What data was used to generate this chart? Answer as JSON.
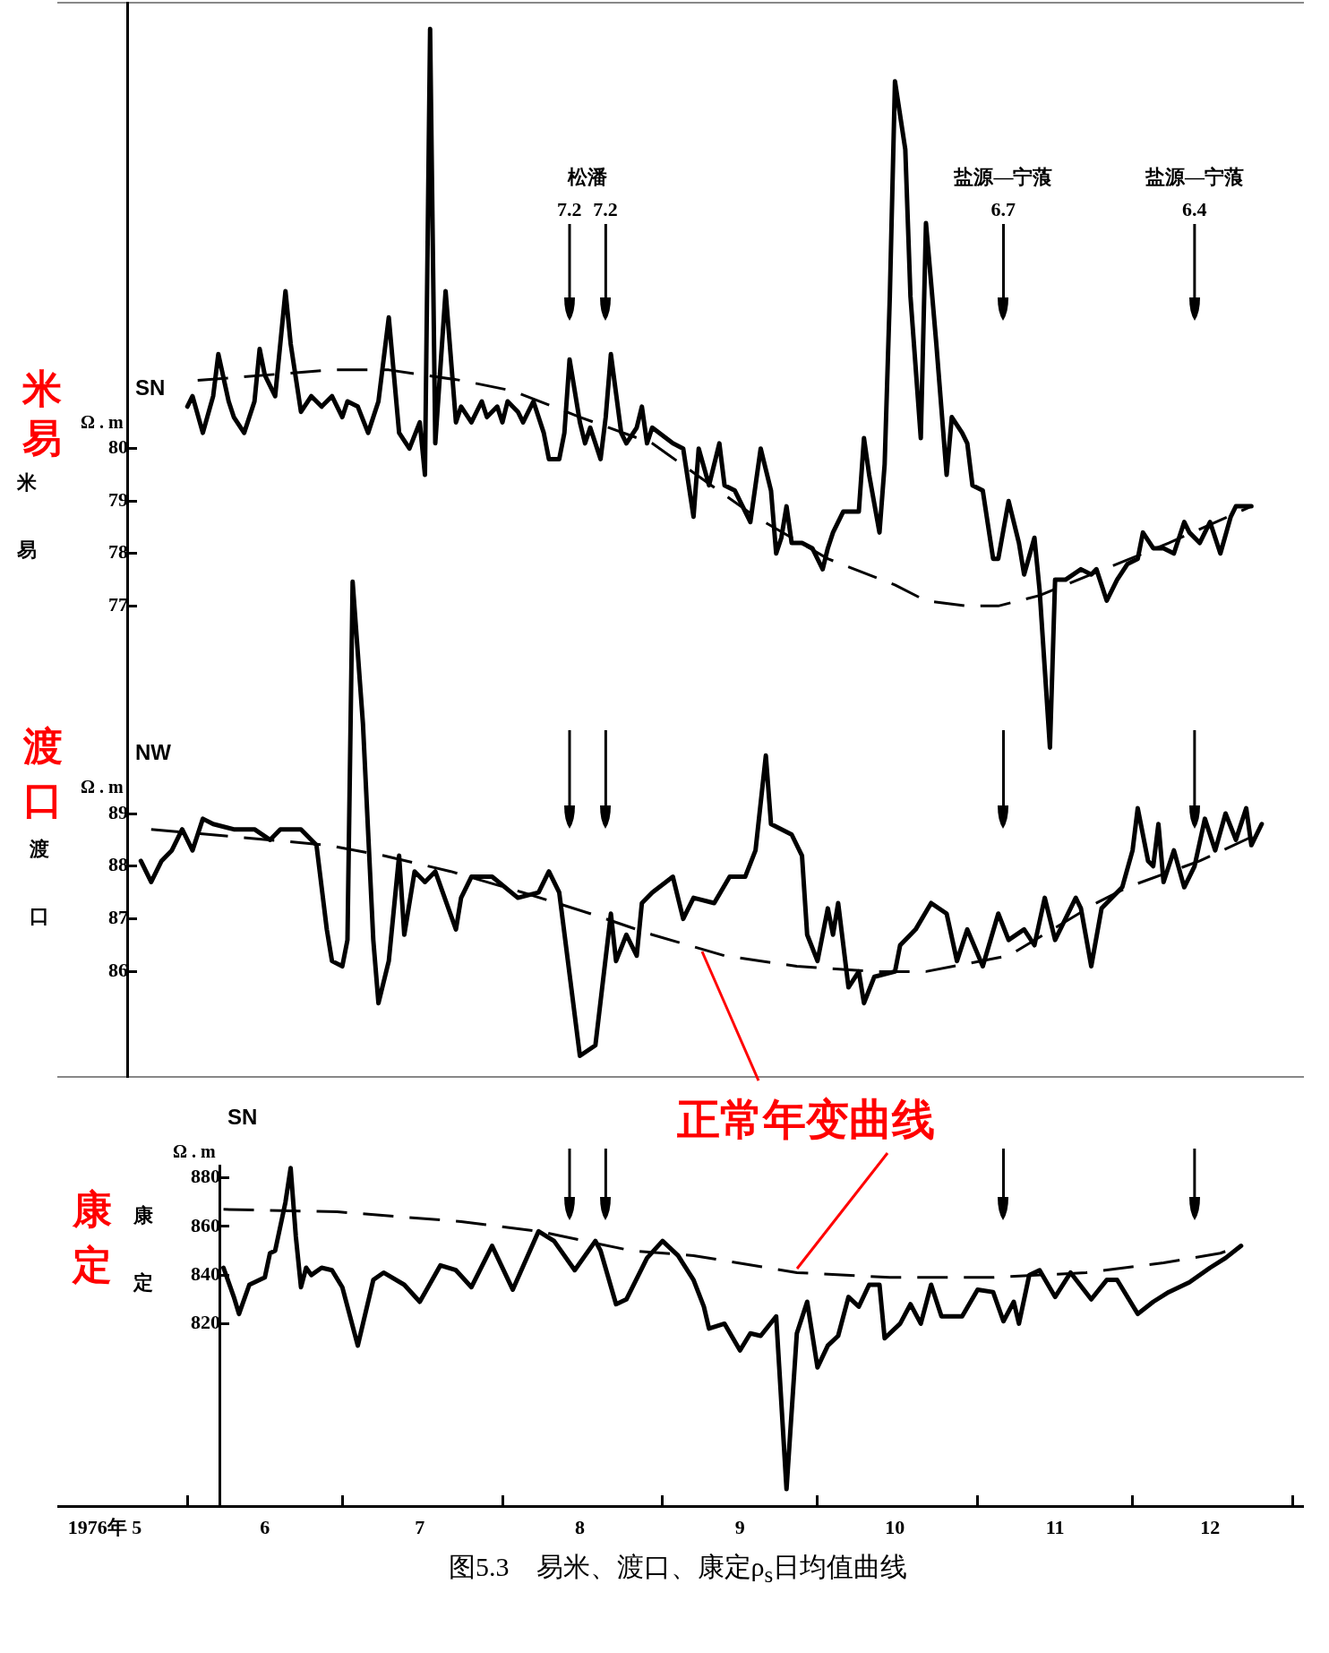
{
  "chart_data": [
    {
      "type": "line",
      "title": "SN",
      "ylabel": "Ω . m",
      "xlim": [
        "1976-05-07",
        "1977-01-03"
      ],
      "ylim": [
        74,
        88.5
      ],
      "yticks": [
        77,
        78,
        79,
        80
      ],
      "tick_labels": "y",
      "series": [
        {
          "color": "#000000",
          "x": [
            "1976-06-01",
            "1976-06-02",
            "1976-06-04",
            "1976-06-06",
            "1976-06-07",
            "1976-06-09",
            "1976-06-10",
            "1976-06-12",
            "1976-06-14",
            "1976-06-15",
            "1976-06-16",
            "1976-06-18",
            "1976-06-20",
            "1976-06-21",
            "1976-06-23",
            "1976-06-25",
            "1976-06-27",
            "1976-06-29",
            "1976-07-01",
            "1976-07-02",
            "1976-07-04",
            "1976-07-06",
            "1976-07-08",
            "1976-07-10",
            "1976-07-11",
            "1976-07-12",
            "1976-07-14",
            "1976-07-16",
            "1976-07-17",
            "1976-07-18",
            "1976-07-19",
            "1976-07-21",
            "1976-07-23",
            "1976-07-24",
            "1976-07-26",
            "1976-07-28",
            "1976-07-29",
            "1976-07-31",
            "1976-08-01",
            "1976-08-02",
            "1976-08-04",
            "1976-08-05",
            "1976-08-07",
            "1976-08-09",
            "1976-08-10",
            "1976-08-12",
            "1976-08-13",
            "1976-08-14",
            "1976-08-16",
            "1976-08-17",
            "1976-08-18",
            "1976-08-20",
            "1976-08-21",
            "1976-08-22",
            "1976-08-24",
            "1976-08-25",
            "1976-08-27",
            "1976-08-28",
            "1976-08-29",
            "1976-08-30",
            "1976-09-03",
            "1976-09-05",
            "1976-09-07",
            "1976-09-08",
            "1976-09-10",
            "1976-09-12",
            "1976-09-13",
            "1976-09-15",
            "1976-09-18",
            "1976-09-20",
            "1976-09-22",
            "1976-09-23",
            "1976-09-24",
            "1976-09-25",
            "1976-09-26",
            "1976-09-28",
            "1976-09-30",
            "1976-10-02",
            "1976-10-03",
            "1976-10-04",
            "1976-10-06",
            "1976-10-09",
            "1976-10-10",
            "1976-10-11",
            "1976-10-13",
            "1976-10-14",
            "1976-10-15",
            "1976-10-16",
            "1976-10-18",
            "1976-10-19",
            "1976-10-21",
            "1976-10-22",
            "1976-10-24",
            "1976-10-26",
            "1976-10-27",
            "1976-10-29",
            "1976-10-30",
            "1976-10-31",
            "1976-11-02",
            "1976-11-04",
            "1976-11-05",
            "1976-11-07",
            "1976-11-09",
            "1976-11-10",
            "1976-11-12",
            "1976-11-13",
            "1976-11-15",
            "1976-11-16",
            "1976-11-18",
            "1976-11-21",
            "1976-11-23",
            "1976-11-24",
            "1976-11-26",
            "1976-11-28",
            "1976-11-30",
            "1976-12-02",
            "1976-12-03",
            "1976-12-05",
            "1976-12-07",
            "1976-12-09",
            "1976-12-11",
            "1976-12-12",
            "1976-12-14",
            "1976-12-16",
            "1976-12-18",
            "1976-12-20",
            "1976-12-21",
            "1976-12-24"
          ],
          "values": [
            80.8,
            81.0,
            80.3,
            81.0,
            81.8,
            80.9,
            80.6,
            80.3,
            80.9,
            81.9,
            81.4,
            81.0,
            83.0,
            82.0,
            80.7,
            81.0,
            80.8,
            81.0,
            80.6,
            80.9,
            80.8,
            80.3,
            80.9,
            82.5,
            81.4,
            80.3,
            80.0,
            80.5,
            79.5,
            88.0,
            80.1,
            83.0,
            80.5,
            80.8,
            80.5,
            80.9,
            80.6,
            80.8,
            80.5,
            80.9,
            80.7,
            80.5,
            80.9,
            80.3,
            79.8,
            79.8,
            80.3,
            81.7,
            80.5,
            80.1,
            80.4,
            79.8,
            80.6,
            81.8,
            80.3,
            80.1,
            80.4,
            80.8,
            80.1,
            80.4,
            80.1,
            80.0,
            78.7,
            80.0,
            79.3,
            80.1,
            79.3,
            79.2,
            78.6,
            80.0,
            79.2,
            78.0,
            78.3,
            78.9,
            78.2,
            78.2,
            78.1,
            77.7,
            78.1,
            78.4,
            78.8,
            78.8,
            80.2,
            79.5,
            78.4,
            79.7,
            82.9,
            87.0,
            85.7,
            82.9,
            80.2,
            84.3,
            82.0,
            79.5,
            80.6,
            80.3,
            80.1,
            79.3,
            79.2,
            77.9,
            77.9,
            79.0,
            78.2,
            77.6,
            78.3,
            77.3,
            74.3,
            77.5,
            77.5,
            77.7,
            77.6,
            77.7,
            77.1,
            77.5,
            77.8,
            77.9,
            78.4,
            78.1,
            78.1,
            78.0,
            78.6,
            78.4,
            78.2,
            78.6,
            78.0,
            78.7,
            78.9,
            78.9
          ]
        },
        {
          "color": "#000000",
          "line_style": "dashed",
          "x": [
            "1976-06-03",
            "1976-06-29",
            "1976-07-10",
            "1976-07-24",
            "1976-08-03",
            "1976-08-16",
            "1976-08-30",
            "1976-09-19",
            "1976-10-03",
            "1976-10-16",
            "1976-10-22",
            "1976-10-30",
            "1976-11-05",
            "1976-11-13",
            "1976-11-23",
            "1976-12-08",
            "1976-12-24"
          ],
          "values": [
            81.3,
            81.5,
            81.5,
            81.3,
            81.1,
            80.6,
            80.1,
            78.7,
            77.9,
            77.4,
            77.1,
            77.0,
            77.0,
            77.2,
            77.6,
            78.2,
            78.9
          ]
        }
      ],
      "ref_lines": [
        {
          "axis": "x",
          "value": "1976-08-14",
          "label": "7.2"
        },
        {
          "axis": "x",
          "value": "1976-08-21",
          "label": "7.2"
        },
        {
          "axis": "x",
          "value": "1976-11-06",
          "label": "6.7"
        },
        {
          "axis": "x",
          "value": "1976-12-13",
          "label": "6.4"
        }
      ],
      "annotations": [
        "米易",
        "米易",
        "松潘",
        "盐源—宁蒗",
        "盐源—宁蒗"
      ]
    },
    {
      "type": "line",
      "title": "NW",
      "ylabel": "Ω . m",
      "xlim": [
        "1976-05-07",
        "1977-01-03"
      ],
      "ylim": [
        84,
        94
      ],
      "yticks": [
        86,
        87,
        88,
        89
      ],
      "tick_labels": "y",
      "series": [
        {
          "color": "#000000",
          "x": [
            "1976-05-23",
            "1976-05-25",
            "1976-05-27",
            "1976-05-29",
            "1976-05-31",
            "1976-06-02",
            "1976-06-04",
            "1976-06-06",
            "1976-06-10",
            "1976-06-14",
            "1976-06-17",
            "1976-06-19",
            "1976-06-23",
            "1976-06-26",
            "1976-06-28",
            "1976-06-29",
            "1976-07-01",
            "1976-07-02",
            "1976-07-03",
            "1976-07-05",
            "1976-07-07",
            "1976-07-08",
            "1976-07-10",
            "1976-07-12",
            "1976-07-13",
            "1976-07-15",
            "1976-07-17",
            "1976-07-19",
            "1976-07-23",
            "1976-07-24",
            "1976-07-26",
            "1976-07-30",
            "1976-08-04",
            "1976-08-08",
            "1976-08-10",
            "1976-08-12",
            "1976-08-16",
            "1976-08-19",
            "1976-08-22",
            "1976-08-23",
            "1976-08-25",
            "1976-08-27",
            "1976-08-28",
            "1976-08-30",
            "1976-09-03",
            "1976-09-05",
            "1976-09-07",
            "1976-09-11",
            "1976-09-14",
            "1976-09-17",
            "1976-09-19",
            "1976-09-21",
            "1976-09-22",
            "1976-09-26",
            "1976-09-28",
            "1976-09-29",
            "1976-10-01",
            "1976-10-03",
            "1976-10-04",
            "1976-10-05",
            "1976-10-07",
            "1976-10-09",
            "1976-10-10",
            "1976-10-12",
            "1976-10-16",
            "1976-10-17",
            "1976-10-20",
            "1976-10-23",
            "1976-10-26",
            "1976-10-28",
            "1976-10-30",
            "1976-11-02",
            "1976-11-05",
            "1976-11-07",
            "1976-11-10",
            "1976-11-12",
            "1976-11-14",
            "1976-11-16",
            "1976-11-20",
            "1976-11-21",
            "1976-11-23",
            "1976-11-25",
            "1976-11-29",
            "1976-12-01",
            "1976-12-02",
            "1976-12-04",
            "1976-12-05",
            "1976-12-06",
            "1976-12-07",
            "1976-12-09",
            "1976-12-11",
            "1976-12-13",
            "1976-12-15",
            "1976-12-17",
            "1976-12-19",
            "1976-12-21",
            "1976-12-23",
            "1976-12-24",
            "1976-12-26"
          ],
          "values": [
            88.1,
            87.7,
            88.1,
            88.3,
            88.7,
            88.3,
            88.9,
            88.8,
            88.7,
            88.7,
            88.5,
            88.7,
            88.7,
            88.4,
            86.8,
            86.2,
            86.1,
            86.6,
            93.4,
            90.7,
            86.6,
            85.4,
            86.2,
            88.2,
            86.7,
            87.9,
            87.7,
            87.9,
            86.8,
            87.4,
            87.8,
            87.8,
            87.4,
            87.5,
            87.9,
            87.5,
            84.4,
            84.6,
            87.1,
            86.2,
            86.7,
            86.3,
            87.3,
            87.5,
            87.8,
            87.0,
            87.4,
            87.3,
            87.8,
            87.8,
            88.3,
            90.1,
            88.8,
            88.6,
            88.2,
            86.7,
            86.2,
            87.2,
            86.7,
            87.3,
            85.7,
            86.0,
            85.4,
            85.9,
            86.0,
            86.5,
            86.8,
            87.3,
            87.1,
            86.2,
            86.8,
            86.1,
            87.1,
            86.6,
            86.8,
            86.5,
            87.4,
            86.6,
            87.4,
            87.2,
            86.1,
            87.2,
            87.6,
            88.3,
            89.1,
            88.1,
            88.0,
            88.8,
            87.7,
            88.3,
            87.6,
            88.0,
            88.9,
            88.3,
            89.0,
            88.5,
            89.1,
            88.4,
            88.8
          ]
        },
        {
          "color": "#000000",
          "line_style": "dashed",
          "x": [
            "1976-05-25",
            "1976-06-28",
            "1976-07-09",
            "1976-07-22",
            "1976-08-05",
            "1976-08-18",
            "1976-08-30",
            "1976-09-13",
            "1976-09-27",
            "1976-10-12",
            "1976-10-22",
            "1976-11-07",
            "1976-11-24",
            "1976-11-30",
            "1976-12-14",
            "1976-12-25"
          ],
          "values": [
            88.7,
            88.4,
            88.2,
            87.9,
            87.5,
            87.1,
            86.7,
            86.3,
            86.1,
            86.0,
            86.0,
            86.3,
            87.3,
            87.6,
            88.1,
            88.6
          ]
        }
      ],
      "ref_lines": [
        {
          "axis": "x",
          "value": "1976-08-14"
        },
        {
          "axis": "x",
          "value": "1976-08-21"
        },
        {
          "axis": "x",
          "value": "1976-11-06"
        },
        {
          "axis": "x",
          "value": "1976-12-13"
        }
      ],
      "annotations": [
        "渡口",
        "渡口"
      ]
    },
    {
      "type": "line",
      "title": "SN",
      "ylabel": "Ω . m",
      "xlim": [
        "1976-05-07",
        "1977-01-03"
      ],
      "ylim": [
        745,
        885
      ],
      "yticks": [
        820,
        840,
        860,
        880
      ],
      "xticks": [
        {
          "value": "1976-05-16",
          "label": "1976年 5"
        },
        {
          "value": "1976-06-01",
          "label": null
        },
        {
          "value": "1976-06-16",
          "label": "6"
        },
        {
          "value": "1976-07-01",
          "label": null
        },
        {
          "value": "1976-07-16",
          "label": "7"
        },
        {
          "value": "1976-08-01",
          "label": null
        },
        {
          "value": "1976-08-16",
          "label": "8"
        },
        {
          "value": "1976-09-01",
          "label": null
        },
        {
          "value": "1976-09-16",
          "label": "9"
        },
        {
          "value": "1976-10-01",
          "label": null
        },
        {
          "value": "1976-10-16",
          "label": "10"
        },
        {
          "value": "1976-11-01",
          "label": null
        },
        {
          "value": "1976-11-16",
          "label": "11"
        },
        {
          "value": "1976-12-01",
          "label": null
        },
        {
          "value": "1976-12-16",
          "label": "12"
        },
        {
          "value": "1977-01-01",
          "label": null
        }
      ],
      "series": [
        {
          "color": "#000000",
          "x": [
            "1976-06-08",
            "1976-06-10",
            "1976-06-11",
            "1976-06-13",
            "1976-06-16",
            "1976-06-17",
            "1976-06-18",
            "1976-06-20",
            "1976-06-21",
            "1976-06-22",
            "1976-06-23",
            "1976-06-24",
            "1976-06-25",
            "1976-06-27",
            "1976-06-29",
            "1976-07-01",
            "1976-07-04",
            "1976-07-07",
            "1976-07-09",
            "1976-07-13",
            "1976-07-16",
            "1976-07-20",
            "1976-07-23",
            "1976-07-26",
            "1976-07-30",
            "1976-08-03",
            "1976-08-08",
            "1976-08-11",
            "1976-08-15",
            "1976-08-19",
            "1976-08-20",
            "1976-08-23",
            "1976-08-25",
            "1976-08-29",
            "1976-09-01",
            "1976-09-04",
            "1976-09-07",
            "1976-09-09",
            "1976-09-10",
            "1976-09-13",
            "1976-09-16",
            "1976-09-18",
            "1976-09-20",
            "1976-09-23",
            "1976-09-25",
            "1976-09-27",
            "1976-09-29",
            "1976-10-01",
            "1976-10-03",
            "1976-10-05",
            "1976-10-07",
            "1976-10-09",
            "1976-10-11",
            "1976-10-13",
            "1976-10-14",
            "1976-10-17",
            "1976-10-19",
            "1976-10-21",
            "1976-10-23",
            "1976-10-25",
            "1976-10-29",
            "1976-11-01",
            "1976-11-04",
            "1976-11-06",
            "1976-11-08",
            "1976-11-09",
            "1976-11-11",
            "1976-11-13",
            "1976-11-16",
            "1976-11-19",
            "1976-11-23",
            "1976-11-26",
            "1976-11-28",
            "1976-12-02",
            "1976-12-05",
            "1976-12-08",
            "1976-12-12",
            "1976-12-16",
            "1976-12-19",
            "1976-12-22"
          ],
          "values": [
            843,
            831,
            824,
            836,
            839,
            849,
            850,
            870,
            884,
            856,
            835,
            843,
            840,
            843,
            842,
            835,
            811,
            838,
            841,
            836,
            829,
            844,
            842,
            835,
            852,
            834,
            858,
            854,
            842,
            854,
            850,
            828,
            830,
            847,
            854,
            848,
            838,
            827,
            818,
            820,
            809,
            816,
            815,
            823,
            752,
            816,
            829,
            802,
            811,
            815,
            831,
            827,
            836,
            836,
            814,
            820,
            828,
            820,
            836,
            823,
            823,
            834,
            833,
            821,
            829,
            820,
            840,
            842,
            831,
            841,
            830,
            838,
            838,
            824,
            829,
            833,
            837,
            843,
            847,
            852
          ]
        },
        {
          "color": "#000000",
          "line_style": "dashed",
          "x": [
            "1976-06-08",
            "1976-06-30",
            "1976-07-24",
            "1976-08-08",
            "1976-08-26",
            "1976-09-07",
            "1976-09-27",
            "1976-10-15",
            "1976-11-04",
            "1976-11-22",
            "1976-12-07",
            "1976-12-18",
            "1976-12-22"
          ],
          "values": [
            867,
            866,
            862,
            858,
            850,
            848,
            841,
            839,
            839,
            841,
            845,
            849,
            852
          ]
        }
      ],
      "ref_lines": [
        {
          "axis": "x",
          "value": "1976-08-14"
        },
        {
          "axis": "x",
          "value": "1976-08-21"
        },
        {
          "axis": "x",
          "value": "1976-11-06"
        },
        {
          "axis": "x",
          "value": "1976-12-13"
        }
      ],
      "annotations": [
        "康定",
        "康定",
        {
          "text": "正常年变曲线",
          "x": "1976-09-27",
          "y": 841
        },
        "图5.3　易米、渡口、康定ρ$_{s}$日均值曲线"
      ]
    }
  ]
}
